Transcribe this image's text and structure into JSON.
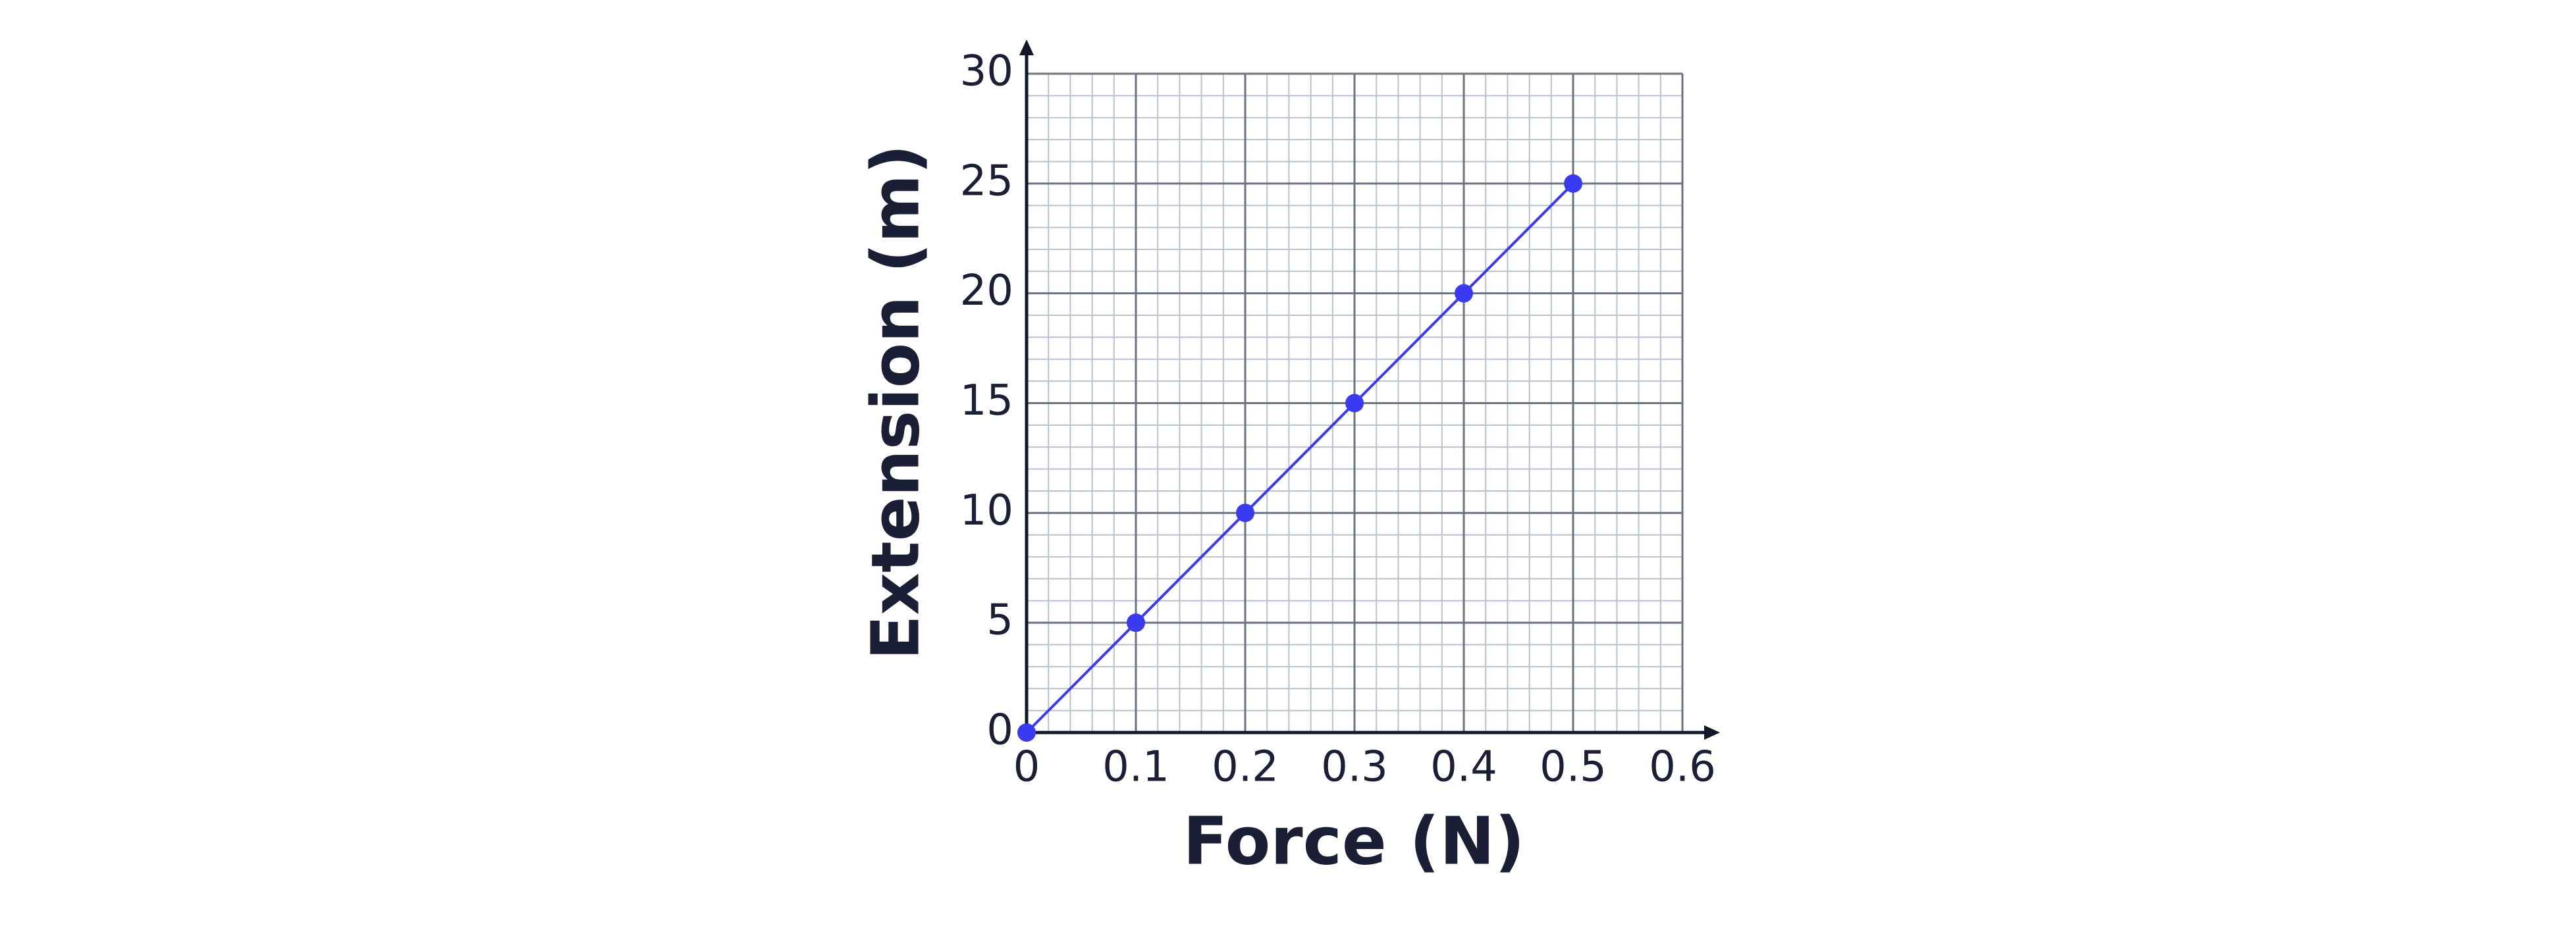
{
  "chart_data": {
    "type": "line",
    "x_label": "Force (N)",
    "y_label": "Extension (m)",
    "x": [
      0,
      0.1,
      0.2,
      0.3,
      0.4,
      0.5
    ],
    "values": [
      0,
      5,
      10,
      15,
      20,
      25
    ],
    "color": "#3a3af0",
    "xlim": [
      0,
      0.6
    ],
    "ylim": [
      0,
      30
    ],
    "xticks": [
      0,
      0.1,
      0.2,
      0.3,
      0.4,
      0.5,
      0.6
    ],
    "yticks": [
      0,
      5,
      10,
      15,
      20,
      25,
      30
    ],
    "grid": true
  }
}
